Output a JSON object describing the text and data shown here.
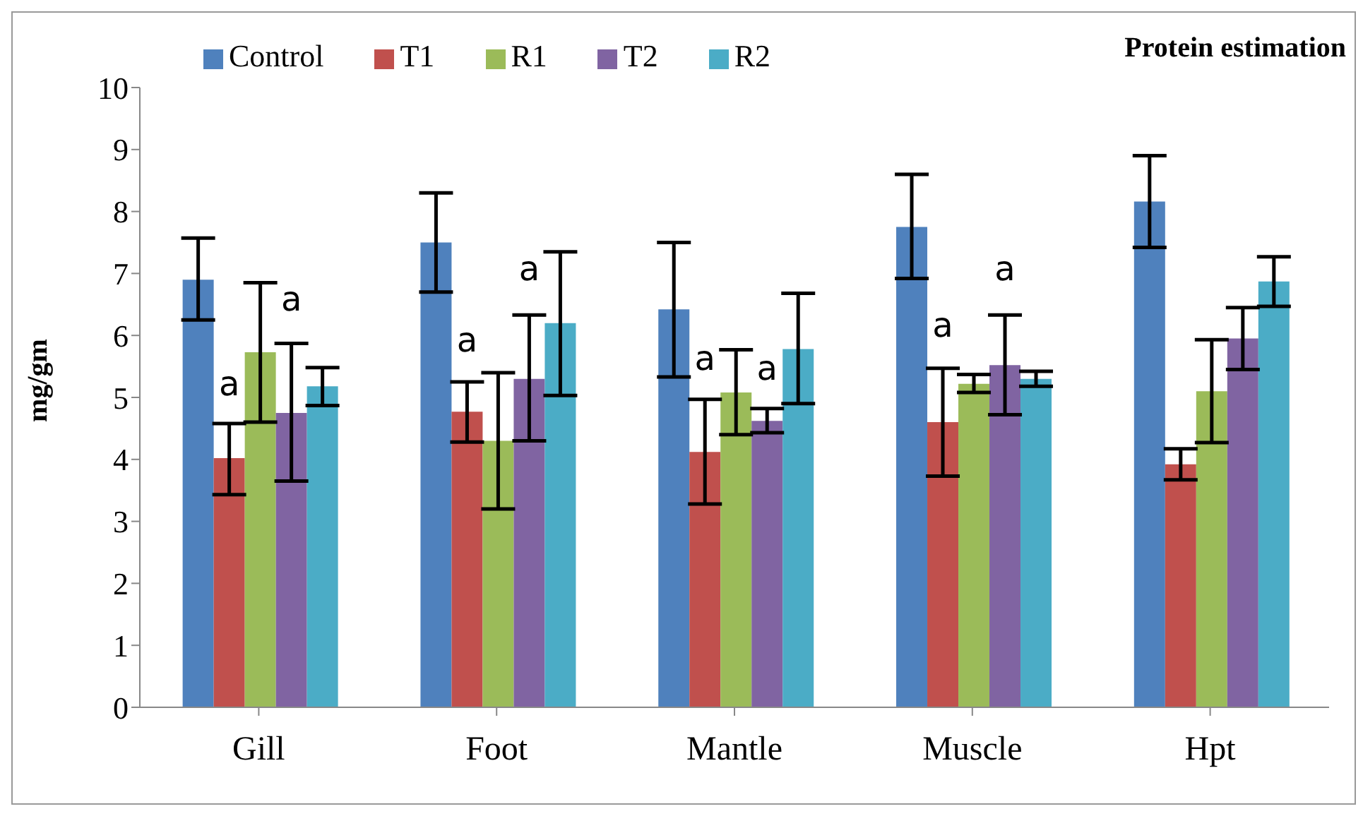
{
  "chart_data": {
    "type": "bar",
    "title": "Protein estimation",
    "ylabel": "mg/gm",
    "categories": [
      "Gill",
      "Foot",
      "Mantle",
      "Muscle",
      "Hpt"
    ],
    "series": [
      {
        "name": "Control",
        "color": "#4f81bd",
        "values": [
          6.9,
          7.5,
          6.42,
          7.75,
          8.16
        ],
        "errors": [
          [
            6.25,
            7.57
          ],
          [
            6.7,
            8.3
          ],
          [
            5.33,
            7.5
          ],
          [
            6.92,
            8.6
          ],
          [
            7.42,
            8.9
          ]
        ]
      },
      {
        "name": "T1",
        "color": "#c0504d",
        "values": [
          4.02,
          4.77,
          4.12,
          4.6,
          3.92
        ],
        "errors": [
          [
            3.43,
            4.58
          ],
          [
            4.28,
            5.25
          ],
          [
            3.28,
            4.97
          ],
          [
            3.73,
            5.47
          ],
          [
            3.67,
            4.17
          ]
        ],
        "value_labels": [
          "a",
          "a",
          "a",
          "a",
          null
        ]
      },
      {
        "name": "R1",
        "color": "#9bbb59",
        "values": [
          5.73,
          4.3,
          5.08,
          5.22,
          5.1
        ],
        "errors": [
          [
            4.6,
            6.85
          ],
          [
            3.2,
            5.4
          ],
          [
            4.4,
            5.77
          ],
          [
            5.08,
            5.37
          ],
          [
            4.27,
            5.93
          ]
        ]
      },
      {
        "name": "T2",
        "color": "#8064a2",
        "values": [
          4.75,
          5.3,
          4.62,
          5.52,
          5.95
        ],
        "errors": [
          [
            3.65,
            5.87
          ],
          [
            4.3,
            6.33
          ],
          [
            4.43,
            4.82
          ],
          [
            4.72,
            6.33
          ],
          [
            5.45,
            6.45
          ]
        ],
        "value_labels": [
          "a",
          "a",
          "a",
          "a",
          null
        ]
      },
      {
        "name": "R2",
        "color": "#4bacc6",
        "values": [
          5.18,
          6.2,
          5.78,
          5.3,
          6.87
        ],
        "errors": [
          [
            4.87,
            5.48
          ],
          [
            5.03,
            7.35
          ],
          [
            4.9,
            6.68
          ],
          [
            5.18,
            5.42
          ],
          [
            6.47,
            7.27
          ]
        ]
      }
    ],
    "ylim": [
      0,
      10
    ],
    "yticks": [
      0,
      1,
      2,
      3,
      4,
      5,
      6,
      7,
      8,
      9,
      10
    ],
    "grid": false,
    "legend": "top"
  }
}
